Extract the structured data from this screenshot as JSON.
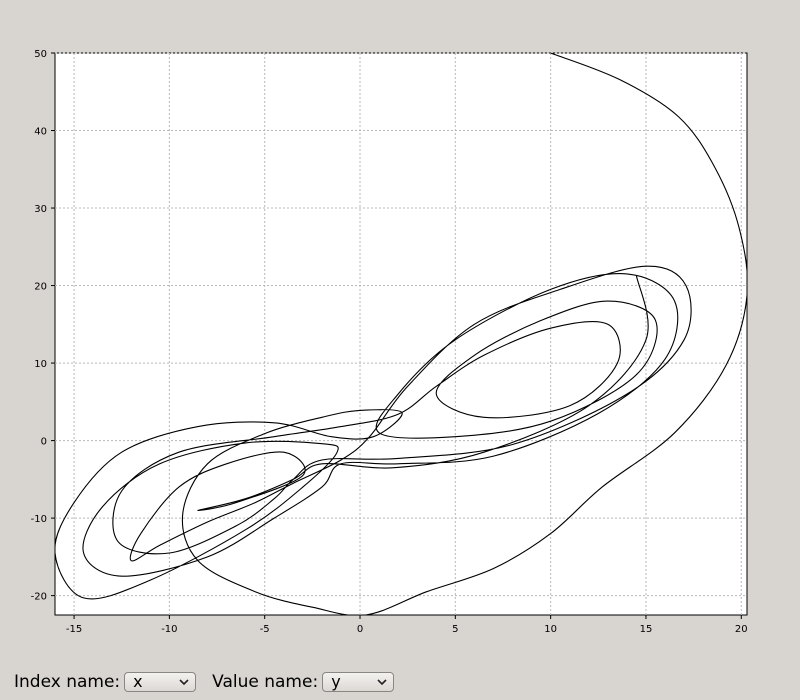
{
  "chart_data": {
    "type": "line",
    "title": "",
    "xlabel": "",
    "ylabel": "",
    "xlim": [
      -16,
      20.3
    ],
    "ylim": [
      -22.5,
      50
    ],
    "xticks": [
      -15,
      -10,
      -5,
      0,
      5,
      10,
      15,
      20
    ],
    "yticks": [
      -20,
      -10,
      0,
      10,
      20,
      30,
      40,
      50
    ],
    "grid": true,
    "series": [
      {
        "color": "#000000",
        "points": [
          [
            10,
            50
          ],
          [
            13.6,
            46.6
          ],
          [
            16.7,
            41.8
          ],
          [
            18.6,
            35.3
          ],
          [
            19.9,
            27.3
          ],
          [
            20.3,
            18.7
          ],
          [
            19.2,
            9.7
          ],
          [
            16.5,
            1.0
          ],
          [
            12.7,
            -6.0
          ],
          [
            10.0,
            -12.0
          ],
          [
            7,
            -16.5
          ],
          [
            3.5,
            -19.5
          ],
          [
            0.3,
            -22.5
          ],
          [
            -2.5,
            -21.5
          ],
          [
            -5.5,
            -19.5
          ],
          [
            -8.5,
            -15.5
          ],
          [
            -9.3,
            -9.5
          ],
          [
            -8.0,
            -3.0
          ],
          [
            -5.0,
            0.9
          ],
          [
            -2,
            3.0
          ],
          [
            0,
            3.9
          ],
          [
            2.2,
            3.6
          ],
          [
            0.7,
            0.5
          ],
          [
            -1.5,
            0.5
          ],
          [
            -4.5,
            2.3
          ],
          [
            -8.5,
            1.8
          ],
          [
            -12.5,
            -1.5
          ],
          [
            -15.0,
            -8.0
          ],
          [
            -16.0,
            -14.5
          ],
          [
            -14.5,
            -20.3
          ],
          [
            -11,
            -18.0
          ],
          [
            -6,
            -11.5
          ],
          [
            -3,
            -6.0
          ],
          [
            -1.2,
            -1.5
          ],
          [
            -2.0,
            -0.4
          ],
          [
            -6.0,
            -0.3
          ],
          [
            -10.5,
            -3.0
          ],
          [
            -13.5,
            -8.5
          ],
          [
            -14.5,
            -14.5
          ],
          [
            -12.5,
            -17.5
          ],
          [
            -8,
            -15.0
          ],
          [
            -4.5,
            -10.0
          ],
          [
            -2.0,
            -6.0
          ],
          [
            -1.0,
            -3.0
          ],
          [
            2.0,
            -3.0
          ],
          [
            7.0,
            -2.0
          ],
          [
            12.5,
            3.5
          ],
          [
            16.0,
            10.5
          ],
          [
            16.5,
            18.0
          ],
          [
            14.0,
            21.5
          ],
          [
            10,
            19.5
          ],
          [
            5.0,
            13.0
          ],
          [
            2,
            6.0
          ],
          [
            1,
            1.0
          ],
          [
            5,
            0.5
          ],
          [
            10,
            2.5
          ],
          [
            14.5,
            8.5
          ],
          [
            15.5,
            15.5
          ],
          [
            13,
            18.0
          ],
          [
            9.5,
            15.5
          ],
          [
            6,
            11.0
          ],
          [
            4,
            6.0
          ],
          [
            6.5,
            3.0
          ],
          [
            11,
            4.5
          ],
          [
            13.5,
            10.0
          ],
          [
            13,
            15.0
          ],
          [
            10,
            14.5
          ],
          [
            6.5,
            11.0
          ],
          [
            4,
            7.0
          ],
          [
            2.0,
            3.4
          ],
          [
            -1,
            1.8
          ],
          [
            -4.5,
            0.5
          ],
          [
            -9.5,
            -1.5
          ],
          [
            -12.5,
            -6.5
          ],
          [
            -12.7,
            -13.0
          ],
          [
            -10,
            -14.5
          ],
          [
            -6.5,
            -11.0
          ],
          [
            -4.5,
            -7.5
          ],
          [
            -3.5,
            -5.0
          ],
          [
            -2.0,
            -2.5
          ],
          [
            2,
            -2.3
          ],
          [
            8,
            -0.5
          ],
          [
            14,
            6.0
          ],
          [
            17.0,
            13.0
          ],
          [
            17.1,
            20.0
          ],
          [
            15,
            22.5
          ],
          [
            10.5,
            19.5
          ],
          [
            6.0,
            15.0
          ],
          [
            2.5,
            7.0
          ],
          [
            0.5,
            0.5
          ],
          [
            -1.0,
            -2.5
          ],
          [
            -3.5,
            -5.5
          ],
          [
            -5.5,
            -8.0
          ],
          [
            -8.0,
            -10.5
          ],
          [
            -10.5,
            -13.5
          ],
          [
            -12,
            -15.5
          ],
          [
            -11.5,
            -12.0
          ],
          [
            -9.5,
            -6.0
          ],
          [
            -7,
            -3.0
          ],
          [
            -4.0,
            -1.5
          ],
          [
            -3,
            -4.5
          ],
          [
            -6.5,
            -8.0
          ],
          [
            -8.5,
            -9.0
          ],
          [
            -6,
            -7.5
          ],
          [
            -3.5,
            -5.0
          ],
          [
            -2,
            -3.0
          ],
          [
            1.8,
            -3.5
          ],
          [
            6.5,
            -1.5
          ],
          [
            12,
            4.5
          ],
          [
            15.0,
            13.0
          ],
          [
            14.5,
            21.3
          ]
        ]
      }
    ]
  },
  "controls": {
    "index_label": "Index name:",
    "index_value": "x",
    "value_label": "Value name:",
    "value_value": "y"
  }
}
